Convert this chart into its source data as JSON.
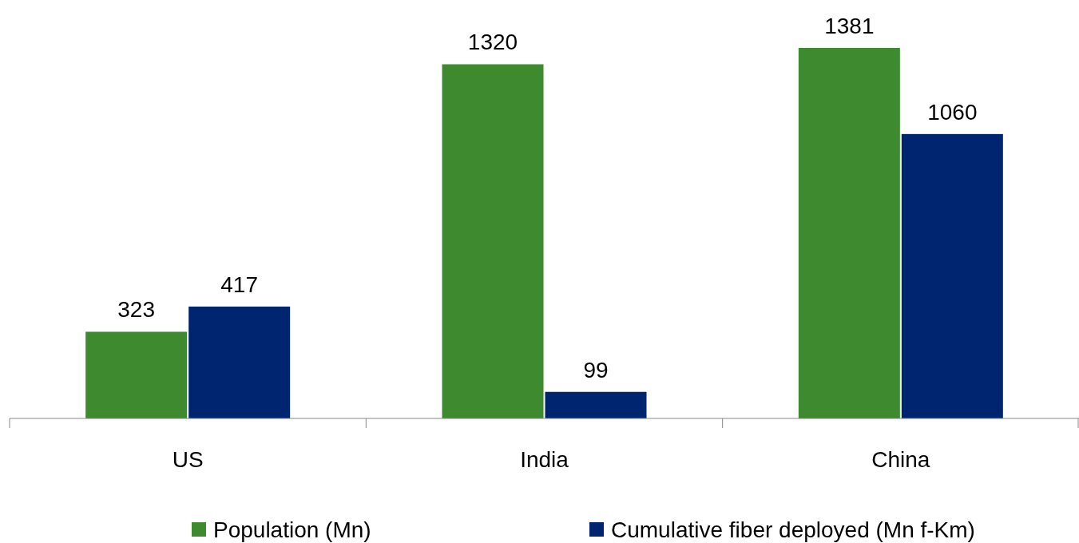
{
  "chart_data": {
    "type": "bar",
    "categories": [
      "US",
      "India",
      "China"
    ],
    "series": [
      {
        "name": "Population (Mn)",
        "color": "#3e8a2f",
        "values": [
          323,
          1320,
          1381
        ]
      },
      {
        "name": "Cumulative fiber deployed (Mn f-Km)",
        "color": "#002570",
        "values": [
          417,
          99,
          1060
        ]
      }
    ],
    "data_labels": true,
    "legend": "bottom"
  }
}
